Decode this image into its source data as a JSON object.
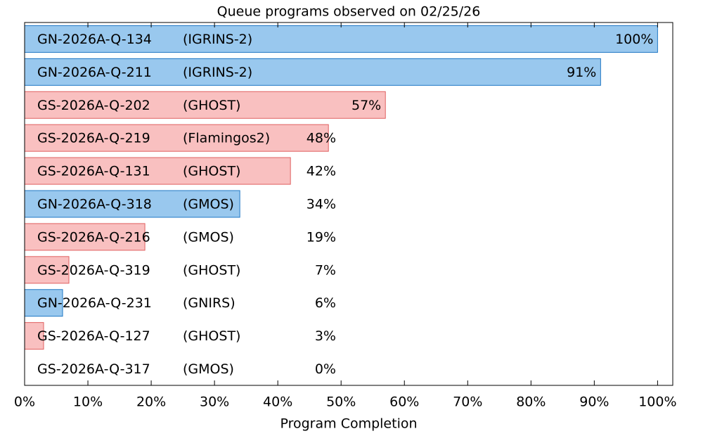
{
  "chart_data": {
    "type": "barh",
    "title": "Queue programs observed on 02/25/26",
    "xlabel": "Program Completion",
    "categories": [
      "GN-2026A-Q-134",
      "GN-2026A-Q-211",
      "GS-2026A-Q-202",
      "GS-2026A-Q-219",
      "GS-2026A-Q-131",
      "GN-2026A-Q-318",
      "GS-2026A-Q-216",
      "GS-2026A-Q-319",
      "GN-2026A-Q-231",
      "GS-2026A-Q-127",
      "GS-2026A-Q-317"
    ],
    "instruments": [
      "(IGRINS-2)",
      "(IGRINS-2)",
      "(GHOST)",
      "(Flamingos2)",
      "(GHOST)",
      "(GMOS)",
      "(GMOS)",
      "(GHOST)",
      "(GNIRS)",
      "(GHOST)",
      "(GMOS)"
    ],
    "values": [
      100,
      91,
      57,
      48,
      42,
      34,
      19,
      7,
      6,
      3,
      0
    ],
    "value_labels": [
      "100%",
      "91%",
      "57%",
      "48%",
      "42%",
      "34%",
      "19%",
      "7%",
      "6%",
      "3%",
      "0%"
    ],
    "colors": [
      "#99c8ee",
      "#99c8ee",
      "#f9c0c0",
      "#f9c0c0",
      "#f9c0c0",
      "#99c8ee",
      "#f9c0c0",
      "#f9c0c0",
      "#99c8ee",
      "#f9c0c0",
      "#f9c0c0"
    ],
    "edgecolors": [
      "#1f77c4",
      "#1f77c4",
      "#e06060",
      "#e06060",
      "#e06060",
      "#1f77c4",
      "#e06060",
      "#e06060",
      "#1f77c4",
      "#e06060",
      "#e06060"
    ],
    "xlim": [
      0,
      102.4
    ],
    "xticks": [
      {
        "value": 0,
        "label": "0%"
      },
      {
        "value": 10,
        "label": "10%"
      },
      {
        "value": 20,
        "label": "20%"
      },
      {
        "value": 30,
        "label": "30%"
      },
      {
        "value": 40,
        "label": "40%"
      },
      {
        "value": 50,
        "label": "50%"
      },
      {
        "value": 60,
        "label": "60%"
      },
      {
        "value": 70,
        "label": "70%"
      },
      {
        "value": 80,
        "label": "80%"
      },
      {
        "value": 90,
        "label": "90%"
      },
      {
        "value": 100,
        "label": "100%"
      }
    ]
  }
}
